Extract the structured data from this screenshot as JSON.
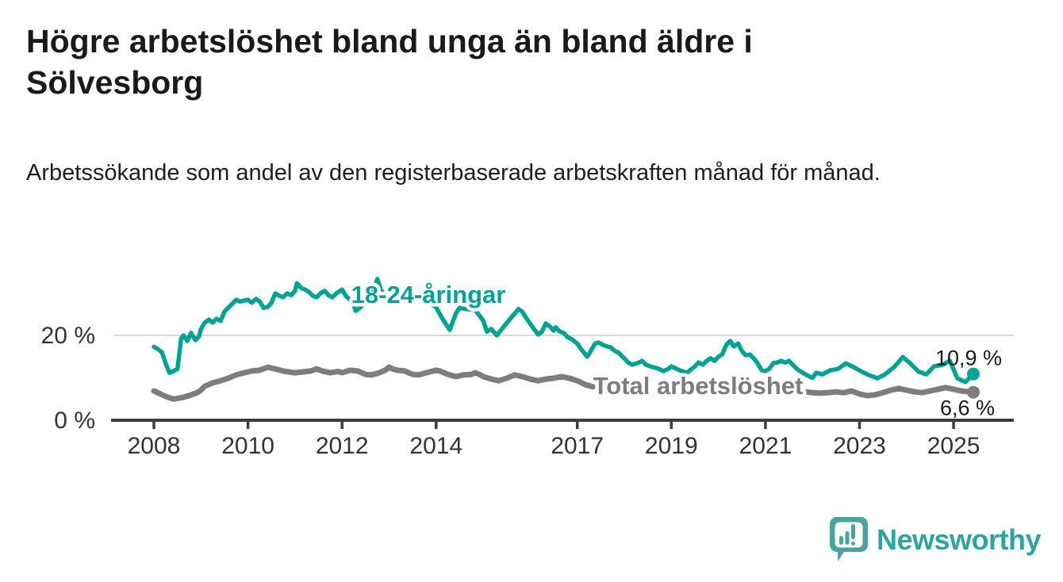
{
  "header": {
    "title": "Högre arbetslöshet bland unga än bland äldre i Sölvesborg",
    "subtitle": "Arbetssökande som andel av den registerbaserade arbetskraften månad för månad."
  },
  "chart_data": {
    "type": "line",
    "title": "Högre arbetslöshet bland unga än bland äldre i Sölvesborg",
    "xlabel": "",
    "ylabel": "Arbetssökande som andel av den registerbaserade arbetskraften",
    "x_range": [
      2008,
      2025.42
    ],
    "ylim": [
      0,
      36
    ],
    "grid": "horizontal gridline at 20 only",
    "legend_position": "labels drawn on lines",
    "x_axis": {
      "ticks": [
        2008,
        2010,
        2012,
        2014,
        2017,
        2019,
        2021,
        2023,
        2025
      ]
    },
    "y_axis": {
      "ticks": [
        {
          "value": 0,
          "label": "0 %"
        },
        {
          "value": 20,
          "label": "20 %"
        }
      ],
      "gridlines": [
        20
      ]
    },
    "series": [
      {
        "name": "18-24-åringar",
        "color": "#00a296",
        "end_value": 10.9,
        "end_label": "10,9 %",
        "points": [
          [
            2008.0,
            17.3
          ],
          [
            2008.08,
            16.8
          ],
          [
            2008.17,
            16.0
          ],
          [
            2008.25,
            13.4
          ],
          [
            2008.33,
            11.2
          ],
          [
            2008.42,
            11.6
          ],
          [
            2008.5,
            12.1
          ],
          [
            2008.58,
            19.3
          ],
          [
            2008.63,
            20.0
          ],
          [
            2008.71,
            18.7
          ],
          [
            2008.79,
            20.6
          ],
          [
            2008.88,
            18.9
          ],
          [
            2008.96,
            19.8
          ],
          [
            2009.0,
            21.5
          ],
          [
            2009.08,
            23.0
          ],
          [
            2009.17,
            23.7
          ],
          [
            2009.25,
            23.0
          ],
          [
            2009.33,
            23.9
          ],
          [
            2009.42,
            23.4
          ],
          [
            2009.5,
            25.6
          ],
          [
            2009.58,
            26.5
          ],
          [
            2009.67,
            27.5
          ],
          [
            2009.75,
            28.4
          ],
          [
            2009.83,
            28.0
          ],
          [
            2009.92,
            28.2
          ],
          [
            2010.0,
            28.4
          ],
          [
            2010.08,
            27.7
          ],
          [
            2010.17,
            28.6
          ],
          [
            2010.25,
            28.0
          ],
          [
            2010.33,
            26.5
          ],
          [
            2010.42,
            26.7
          ],
          [
            2010.5,
            27.7
          ],
          [
            2010.58,
            29.9
          ],
          [
            2010.67,
            29.3
          ],
          [
            2010.75,
            29.0
          ],
          [
            2010.83,
            29.9
          ],
          [
            2010.92,
            29.5
          ],
          [
            2011.0,
            30.5
          ],
          [
            2011.04,
            32.3
          ],
          [
            2011.13,
            31.2
          ],
          [
            2011.21,
            30.8
          ],
          [
            2011.29,
            30.3
          ],
          [
            2011.38,
            29.3
          ],
          [
            2011.46,
            29.0
          ],
          [
            2011.54,
            29.9
          ],
          [
            2011.63,
            30.5
          ],
          [
            2011.71,
            29.5
          ],
          [
            2011.79,
            29.0
          ],
          [
            2011.88,
            29.9
          ],
          [
            2012.0,
            30.8
          ],
          [
            2012.08,
            29.3
          ],
          [
            2012.17,
            28.4
          ],
          [
            2012.25,
            27.1
          ],
          [
            2012.29,
            25.8
          ],
          [
            2012.38,
            26.5
          ],
          [
            2012.46,
            27.5
          ],
          [
            2012.54,
            28.4
          ],
          [
            2012.63,
            29.5
          ],
          [
            2012.75,
            33.3
          ],
          [
            2012.83,
            30.5
          ],
          [
            2012.92,
            29.8
          ],
          [
            2013.0,
            29.2
          ],
          [
            2013.17,
            29.6
          ],
          [
            2013.33,
            28.6
          ],
          [
            2013.5,
            28.2
          ],
          [
            2013.67,
            28.9
          ],
          [
            2013.83,
            28.0
          ],
          [
            2014.0,
            26.6
          ],
          [
            2014.13,
            24.0
          ],
          [
            2014.29,
            21.3
          ],
          [
            2014.42,
            25.2
          ],
          [
            2014.5,
            26.5
          ],
          [
            2014.63,
            26.2
          ],
          [
            2014.83,
            26.0
          ],
          [
            2015.0,
            23.5
          ],
          [
            2015.08,
            20.9
          ],
          [
            2015.17,
            21.5
          ],
          [
            2015.29,
            20.0
          ],
          [
            2015.46,
            22.4
          ],
          [
            2015.58,
            24.0
          ],
          [
            2015.75,
            26.2
          ],
          [
            2015.83,
            25.6
          ],
          [
            2015.92,
            24.0
          ],
          [
            2016.08,
            21.5
          ],
          [
            2016.17,
            20.2
          ],
          [
            2016.25,
            20.9
          ],
          [
            2016.33,
            22.8
          ],
          [
            2016.42,
            22.1
          ],
          [
            2016.5,
            21.1
          ],
          [
            2016.54,
            21.9
          ],
          [
            2016.63,
            20.9
          ],
          [
            2016.71,
            20.6
          ],
          [
            2016.79,
            19.6
          ],
          [
            2016.88,
            19.1
          ],
          [
            2017.0,
            18.1
          ],
          [
            2017.08,
            16.8
          ],
          [
            2017.21,
            15.0
          ],
          [
            2017.29,
            16.4
          ],
          [
            2017.38,
            18.1
          ],
          [
            2017.46,
            18.3
          ],
          [
            2017.54,
            17.8
          ],
          [
            2017.63,
            17.4
          ],
          [
            2017.71,
            17.2
          ],
          [
            2017.79,
            16.4
          ],
          [
            2017.88,
            15.9
          ],
          [
            2017.96,
            15.0
          ],
          [
            2018.0,
            14.6
          ],
          [
            2018.08,
            13.6
          ],
          [
            2018.17,
            13.1
          ],
          [
            2018.29,
            13.5
          ],
          [
            2018.38,
            14.0
          ],
          [
            2018.46,
            13.1
          ],
          [
            2018.58,
            12.6
          ],
          [
            2018.71,
            12.2
          ],
          [
            2018.83,
            11.6
          ],
          [
            2018.92,
            12.0
          ],
          [
            2019.0,
            12.7
          ],
          [
            2019.17,
            11.8
          ],
          [
            2019.33,
            11.2
          ],
          [
            2019.5,
            12.7
          ],
          [
            2019.58,
            13.6
          ],
          [
            2019.67,
            13.1
          ],
          [
            2019.75,
            14.0
          ],
          [
            2019.83,
            14.6
          ],
          [
            2019.92,
            14.0
          ],
          [
            2020.0,
            15.0
          ],
          [
            2020.08,
            15.5
          ],
          [
            2020.17,
            17.8
          ],
          [
            2020.25,
            18.7
          ],
          [
            2020.33,
            17.4
          ],
          [
            2020.42,
            18.1
          ],
          [
            2020.5,
            16.3
          ],
          [
            2020.58,
            15.3
          ],
          [
            2020.67,
            15.5
          ],
          [
            2020.75,
            14.6
          ],
          [
            2020.83,
            13.5
          ],
          [
            2020.92,
            11.8
          ],
          [
            2021.0,
            11.6
          ],
          [
            2021.08,
            12.1
          ],
          [
            2021.17,
            13.5
          ],
          [
            2021.25,
            13.6
          ],
          [
            2021.33,
            14.0
          ],
          [
            2021.42,
            13.6
          ],
          [
            2021.5,
            14.0
          ],
          [
            2021.58,
            13.1
          ],
          [
            2021.67,
            12.1
          ],
          [
            2021.79,
            11.2
          ],
          [
            2021.92,
            10.4
          ],
          [
            2022.0,
            10.0
          ],
          [
            2022.08,
            11.2
          ],
          [
            2022.21,
            10.8
          ],
          [
            2022.38,
            11.8
          ],
          [
            2022.54,
            12.1
          ],
          [
            2022.71,
            13.4
          ],
          [
            2022.88,
            12.5
          ],
          [
            2023.04,
            11.5
          ],
          [
            2023.21,
            10.6
          ],
          [
            2023.38,
            9.9
          ],
          [
            2023.54,
            10.8
          ],
          [
            2023.75,
            12.7
          ],
          [
            2023.92,
            14.9
          ],
          [
            2024.08,
            13.4
          ],
          [
            2024.25,
            11.5
          ],
          [
            2024.42,
            10.8
          ],
          [
            2024.58,
            12.7
          ],
          [
            2024.75,
            13.0
          ],
          [
            2024.92,
            14.0
          ],
          [
            2025.08,
            9.9
          ],
          [
            2025.25,
            9.0
          ],
          [
            2025.42,
            10.9
          ]
        ]
      },
      {
        "name": "Total arbetslöshet",
        "color": "#7d7d7d",
        "end_value": 6.6,
        "end_label": "6,6 %",
        "points": [
          [
            2008.0,
            6.9
          ],
          [
            2008.08,
            6.5
          ],
          [
            2008.25,
            5.6
          ],
          [
            2008.42,
            5.0
          ],
          [
            2008.58,
            5.3
          ],
          [
            2008.75,
            5.8
          ],
          [
            2008.92,
            6.5
          ],
          [
            2009.0,
            7.1
          ],
          [
            2009.08,
            8.0
          ],
          [
            2009.25,
            8.8
          ],
          [
            2009.42,
            9.3
          ],
          [
            2009.58,
            9.9
          ],
          [
            2009.75,
            10.7
          ],
          [
            2009.92,
            11.2
          ],
          [
            2010.08,
            11.6
          ],
          [
            2010.25,
            11.8
          ],
          [
            2010.42,
            12.5
          ],
          [
            2010.58,
            12.1
          ],
          [
            2010.75,
            11.6
          ],
          [
            2010.92,
            11.3
          ],
          [
            2011.0,
            11.2
          ],
          [
            2011.17,
            11.4
          ],
          [
            2011.33,
            11.6
          ],
          [
            2011.46,
            12.1
          ],
          [
            2011.58,
            11.6
          ],
          [
            2011.75,
            11.2
          ],
          [
            2011.92,
            11.5
          ],
          [
            2012.0,
            11.2
          ],
          [
            2012.17,
            11.8
          ],
          [
            2012.33,
            11.6
          ],
          [
            2012.5,
            10.8
          ],
          [
            2012.63,
            10.7
          ],
          [
            2012.79,
            11.2
          ],
          [
            2012.92,
            11.8
          ],
          [
            2013.0,
            12.5
          ],
          [
            2013.08,
            12.1
          ],
          [
            2013.17,
            11.8
          ],
          [
            2013.33,
            11.6
          ],
          [
            2013.5,
            10.8
          ],
          [
            2013.63,
            10.7
          ],
          [
            2013.79,
            11.2
          ],
          [
            2014.0,
            11.8
          ],
          [
            2014.08,
            11.6
          ],
          [
            2014.25,
            10.8
          ],
          [
            2014.42,
            10.3
          ],
          [
            2014.58,
            10.7
          ],
          [
            2014.75,
            10.8
          ],
          [
            2014.83,
            11.2
          ],
          [
            2014.92,
            10.8
          ],
          [
            2015.0,
            10.3
          ],
          [
            2015.17,
            9.7
          ],
          [
            2015.33,
            9.3
          ],
          [
            2015.5,
            9.9
          ],
          [
            2015.67,
            10.7
          ],
          [
            2015.83,
            10.3
          ],
          [
            2016.0,
            9.7
          ],
          [
            2016.17,
            9.3
          ],
          [
            2016.33,
            9.7
          ],
          [
            2016.5,
            9.9
          ],
          [
            2016.67,
            10.3
          ],
          [
            2016.83,
            9.9
          ],
          [
            2017.0,
            9.3
          ],
          [
            2017.17,
            8.4
          ],
          [
            2017.33,
            7.9
          ],
          null,
          [
            2021.85,
            6.7
          ],
          [
            2022.0,
            6.5
          ],
          [
            2022.17,
            6.4
          ],
          [
            2022.33,
            6.5
          ],
          [
            2022.5,
            6.7
          ],
          [
            2022.67,
            6.5
          ],
          [
            2022.83,
            6.9
          ],
          [
            2023.0,
            6.2
          ],
          [
            2023.17,
            5.8
          ],
          [
            2023.33,
            6.0
          ],
          [
            2023.5,
            6.5
          ],
          [
            2023.67,
            7.1
          ],
          [
            2023.83,
            7.5
          ],
          [
            2024.0,
            7.1
          ],
          [
            2024.17,
            6.7
          ],
          [
            2024.33,
            6.5
          ],
          [
            2024.5,
            6.9
          ],
          [
            2024.67,
            7.3
          ],
          [
            2024.83,
            7.7
          ],
          [
            2025.0,
            7.3
          ],
          [
            2025.17,
            6.9
          ],
          [
            2025.33,
            6.7
          ],
          [
            2025.42,
            6.6
          ]
        ]
      }
    ]
  },
  "footer": {
    "brand": "Newsworthy",
    "brand_color": "#2ea3a0",
    "logo_icon": "speech-bubble-bar-chart-icon"
  }
}
